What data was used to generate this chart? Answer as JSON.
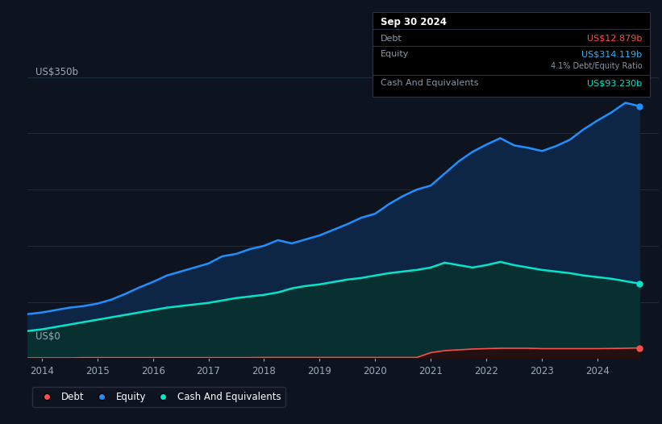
{
  "bg_color": "#0e1320",
  "plot_bg_color": "#0e1320",
  "grid_color": "#1e2d3d",
  "title_box": {
    "date": "Sep 30 2024",
    "debt_label": "Debt",
    "debt_value": "US$12.879b",
    "equity_label": "Equity",
    "equity_value": "US$314.119b",
    "ratio_text": "4.1% Debt/Equity Ratio",
    "cash_label": "Cash And Equivalents",
    "cash_value": "US$93.230b",
    "debt_color": "#ff4d4d",
    "equity_color": "#29b6f6",
    "cash_color": "#00e5cc",
    "ratio_color": "#cccccc",
    "ratio_highlight": "#29b6f6",
    "label_color": "#8899aa",
    "date_color": "#ffffff",
    "box_bg": "#000000",
    "box_border": "#333344"
  },
  "ylabel": "US$350b",
  "y0label": "US$0",
  "years": [
    2013.75,
    2014.0,
    2014.25,
    2014.5,
    2014.75,
    2015.0,
    2015.25,
    2015.5,
    2015.75,
    2016.0,
    2016.25,
    2016.5,
    2016.75,
    2017.0,
    2017.25,
    2017.5,
    2017.75,
    2018.0,
    2018.25,
    2018.5,
    2018.75,
    2019.0,
    2019.25,
    2019.5,
    2019.75,
    2020.0,
    2020.25,
    2020.5,
    2020.75,
    2021.0,
    2021.25,
    2021.5,
    2021.75,
    2022.0,
    2022.25,
    2022.5,
    2022.75,
    2023.0,
    2023.25,
    2023.5,
    2023.75,
    2024.0,
    2024.25,
    2024.5,
    2024.75
  ],
  "equity": [
    55,
    57,
    60,
    63,
    65,
    68,
    73,
    80,
    88,
    95,
    103,
    108,
    113,
    118,
    127,
    130,
    136,
    140,
    147,
    143,
    148,
    153,
    160,
    167,
    175,
    180,
    192,
    202,
    210,
    215,
    230,
    245,
    257,
    266,
    274,
    265,
    262,
    258,
    264,
    272,
    285,
    296,
    306,
    318,
    314
  ],
  "cash": [
    34,
    36,
    39,
    42,
    45,
    48,
    51,
    54,
    57,
    60,
    63,
    65,
    67,
    69,
    72,
    75,
    77,
    79,
    82,
    87,
    90,
    92,
    95,
    98,
    100,
    103,
    106,
    108,
    110,
    113,
    119,
    116,
    113,
    116,
    120,
    116,
    113,
    110,
    108,
    106,
    103,
    101,
    99,
    96,
    93
  ],
  "debt": [
    0.5,
    0.5,
    0.5,
    0.5,
    0.8,
    0.8,
    0.8,
    0.8,
    0.8,
    0.8,
    0.8,
    0.8,
    0.8,
    0.8,
    0.8,
    0.8,
    0.8,
    1.0,
    1.0,
    1.0,
    1.0,
    1.0,
    1.0,
    1.0,
    1.0,
    1.0,
    1.0,
    1.0,
    1.0,
    7.0,
    9.5,
    10.5,
    11.5,
    12.0,
    12.5,
    12.5,
    12.5,
    12.0,
    12.0,
    12.0,
    12.0,
    12.0,
    12.2,
    12.5,
    12.879
  ],
  "equity_color": "#1e90ff",
  "equity_fill": "#0d2645",
  "cash_color": "#00e5cc",
  "cash_fill": "#083030",
  "debt_color": "#ff4d4d",
  "debt_fill": "#2a0a0a",
  "ylim": [
    0,
    380
  ],
  "xlim": [
    2013.75,
    2025.1
  ],
  "xticks": [
    2014,
    2015,
    2016,
    2017,
    2018,
    2019,
    2020,
    2021,
    2022,
    2023,
    2024
  ],
  "legend": [
    {
      "label": "Debt",
      "color": "#ff4d4d"
    },
    {
      "label": "Equity",
      "color": "#1e90ff"
    },
    {
      "label": "Cash And Equivalents",
      "color": "#00e5cc"
    }
  ]
}
